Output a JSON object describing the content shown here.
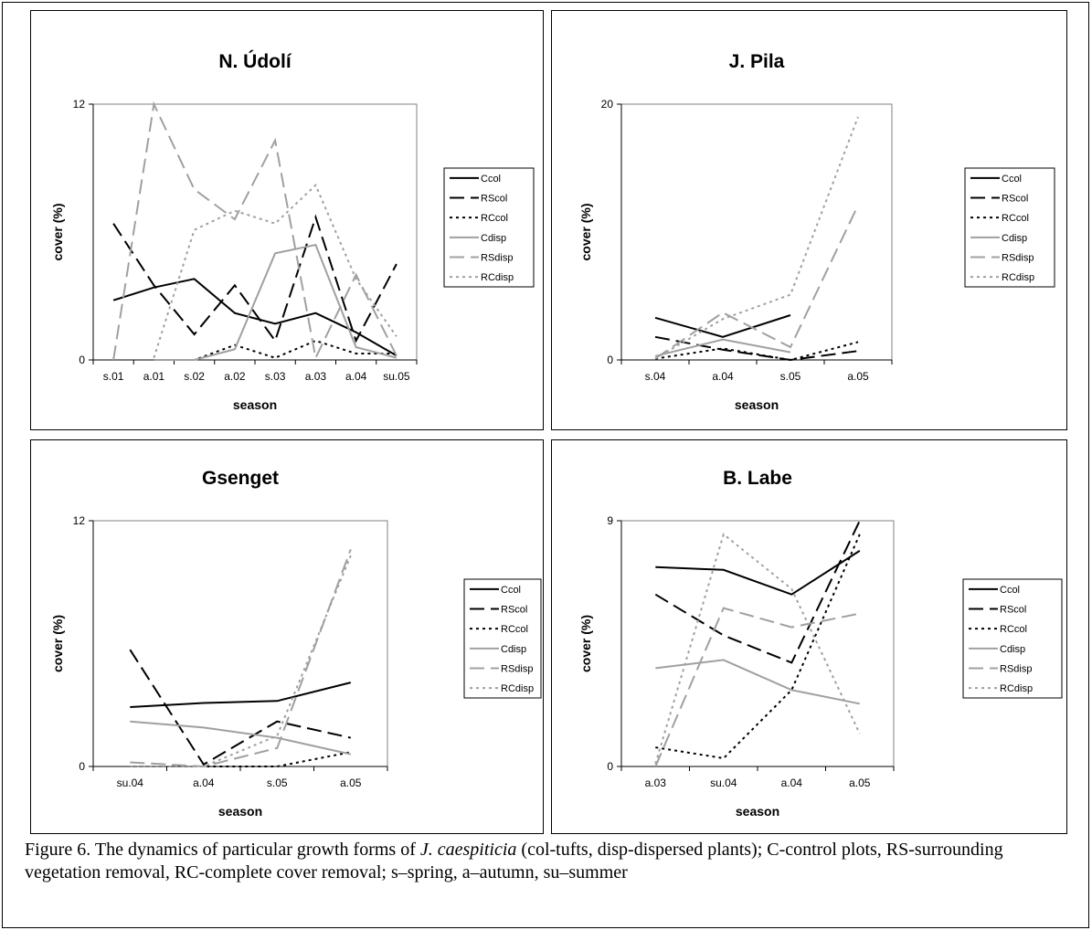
{
  "caption": {
    "prefix": "Figure 6. The dynamics of particular growth forms of ",
    "species": "J. caespiticia",
    "suffix": " (col-tufts, disp-dispersed plants); C-control plots, RS-surrounding vegetation removal, RC-complete cover removal; s–spring, a–autumn, su–summer"
  },
  "legend_labels": [
    "Ccol",
    "RScol",
    "RCcol",
    "Cdisp",
    "RSdisp",
    "RCdisp"
  ],
  "series_styles": [
    {
      "name": "Ccol",
      "color": "#000000",
      "dash": "solid"
    },
    {
      "name": "RScol",
      "color": "#000000",
      "dash": "long-dash"
    },
    {
      "name": "RCcol",
      "color": "#000000",
      "dash": "dotted"
    },
    {
      "name": "Cdisp",
      "color": "#a0a0a0",
      "dash": "solid"
    },
    {
      "name": "RSdisp",
      "color": "#a0a0a0",
      "dash": "long-dash"
    },
    {
      "name": "RCdisp",
      "color": "#a0a0a0",
      "dash": "dotted"
    }
  ],
  "chart_data": [
    {
      "type": "line",
      "title": "N. Údolí",
      "xlabel": "season",
      "ylabel": "cover (%)",
      "ylim": [
        0,
        12
      ],
      "yticks": [
        "0",
        "12"
      ],
      "categories": [
        "s.01",
        "a.01",
        "s.02",
        "a.02",
        "s.03",
        "a.03",
        "a.04",
        "su.05"
      ],
      "grid": false,
      "legend_position": "right",
      "series": [
        {
          "name": "Ccol",
          "values": [
            2.8,
            3.4,
            3.8,
            2.2,
            1.7,
            2.2,
            1.3,
            0.2
          ]
        },
        {
          "name": "RScol",
          "values": [
            6.4,
            3.5,
            1.2,
            3.5,
            0.9,
            6.7,
            0.9,
            4.5
          ]
        },
        {
          "name": "RCcol",
          "values": [
            null,
            0,
            0,
            0.7,
            0.1,
            0.9,
            0.3,
            0.3
          ]
        },
        {
          "name": "Cdisp",
          "values": [
            null,
            0,
            0,
            0.5,
            5.0,
            5.4,
            0.6,
            0.1
          ]
        },
        {
          "name": "RSdisp",
          "values": [
            0,
            12.0,
            8.0,
            6.6,
            10.3,
            0.1,
            4.0,
            0.2
          ]
        },
        {
          "name": "RCdisp",
          "values": [
            null,
            0.1,
            6.1,
            7.0,
            6.4,
            8.2,
            3.8,
            1.1
          ]
        }
      ]
    },
    {
      "type": "line",
      "title": "J. Pila",
      "xlabel": "season",
      "ylabel": "cover (%)",
      "ylim": [
        0,
        20
      ],
      "yticks": [
        "0",
        "20"
      ],
      "categories": [
        "s.04",
        "a.04",
        "s.05",
        "a.05"
      ],
      "grid": false,
      "legend_position": "right",
      "series": [
        {
          "name": "Ccol",
          "values": [
            3.3,
            1.8,
            3.5,
            null
          ]
        },
        {
          "name": "RScol",
          "values": [
            1.8,
            0.8,
            0.0,
            0.7
          ]
        },
        {
          "name": "RCcol",
          "values": [
            0.1,
            0.9,
            0.0,
            1.4
          ]
        },
        {
          "name": "Cdisp",
          "values": [
            0.3,
            1.6,
            0.6,
            null
          ]
        },
        {
          "name": "RSdisp",
          "values": [
            0.1,
            3.7,
            1.0,
            12.1
          ]
        },
        {
          "name": "RCdisp",
          "values": [
            0.1,
            3.2,
            5.1,
            19.0
          ]
        }
      ]
    },
    {
      "type": "line",
      "title": "Gsenget",
      "xlabel": "season",
      "ylabel": "cover (%)",
      "ylim": [
        0,
        12
      ],
      "yticks": [
        "0",
        "12"
      ],
      "categories": [
        "su.04",
        "a.04",
        "s.05",
        "a.05"
      ],
      "grid": false,
      "legend_position": "right",
      "series": [
        {
          "name": "Ccol",
          "values": [
            2.9,
            3.1,
            3.2,
            4.1
          ]
        },
        {
          "name": "RScol",
          "values": [
            5.7,
            0.1,
            2.2,
            1.4
          ]
        },
        {
          "name": "RCcol",
          "values": [
            0,
            0,
            0,
            0.7
          ]
        },
        {
          "name": "Cdisp",
          "values": [
            2.2,
            1.9,
            1.4,
            0.6
          ]
        },
        {
          "name": "RSdisp",
          "values": [
            0.2,
            0,
            0.9,
            10.6
          ]
        },
        {
          "name": "RCdisp",
          "values": [
            0,
            0,
            1.5,
            10.3
          ]
        }
      ]
    },
    {
      "type": "line",
      "title": "B. Labe",
      "xlabel": "season",
      "ylabel": "cover (%)",
      "ylim": [
        0,
        9
      ],
      "yticks": [
        "0",
        "9"
      ],
      "categories": [
        "a.03",
        "su.04",
        "a.04",
        "a.05"
      ],
      "grid": false,
      "legend_position": "right",
      "series": [
        {
          "name": "Ccol",
          "values": [
            7.3,
            7.2,
            6.3,
            7.9
          ]
        },
        {
          "name": "RScol",
          "values": [
            6.3,
            4.8,
            3.8,
            9.0
          ]
        },
        {
          "name": "RCcol",
          "values": [
            0.7,
            0.3,
            2.8,
            8.5
          ]
        },
        {
          "name": "Cdisp",
          "values": [
            3.6,
            3.9,
            2.8,
            2.3
          ]
        },
        {
          "name": "RSdisp",
          "values": [
            0,
            5.8,
            5.1,
            5.6
          ]
        },
        {
          "name": "RCdisp",
          "values": [
            0.1,
            8.5,
            6.5,
            1.2
          ]
        }
      ]
    }
  ]
}
